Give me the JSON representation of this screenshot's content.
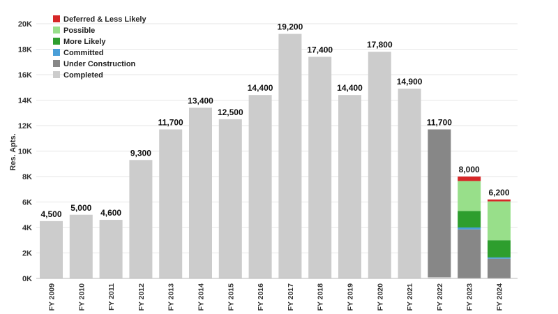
{
  "chart_data": {
    "type": "bar",
    "stacked": true,
    "ylabel": "Res. Apts.",
    "xlabel": "",
    "ylim": [
      0,
      20000
    ],
    "yticks": [
      0,
      2000,
      4000,
      6000,
      8000,
      10000,
      12000,
      14000,
      16000,
      18000,
      20000
    ],
    "ytick_labels": [
      "0K",
      "2K",
      "4K",
      "6K",
      "8K",
      "10K",
      "12K",
      "14K",
      "16K",
      "18K",
      "20K"
    ],
    "grid": true,
    "legend_position": "top-left",
    "categories": [
      "FY 2009",
      "FY 2010",
      "FY 2011",
      "FY 2012",
      "FY 2013",
      "FY 2014",
      "FY 2015",
      "FY 2016",
      "FY 2017",
      "FY 2018",
      "FY 2019",
      "FY 2020",
      "FY 2021",
      "FY 2022",
      "FY 2023",
      "FY 2024"
    ],
    "series": [
      {
        "name": "Completed",
        "color": "#cccccc",
        "values": [
          4500,
          5000,
          4600,
          9300,
          11700,
          13400,
          12500,
          14400,
          19200,
          17400,
          14400,
          17800,
          14900,
          100,
          0,
          0
        ]
      },
      {
        "name": "Under Construction",
        "color": "#878787",
        "values": [
          0,
          0,
          0,
          0,
          0,
          0,
          0,
          0,
          0,
          0,
          0,
          0,
          0,
          11600,
          3850,
          1550
        ]
      },
      {
        "name": "Committed",
        "color": "#4a9fd8",
        "values": [
          0,
          0,
          0,
          0,
          0,
          0,
          0,
          0,
          0,
          0,
          0,
          0,
          0,
          0,
          150,
          100
        ]
      },
      {
        "name": "More Likely",
        "color": "#2e9e2e",
        "values": [
          0,
          0,
          0,
          0,
          0,
          0,
          0,
          0,
          0,
          0,
          0,
          0,
          0,
          0,
          1300,
          1350
        ]
      },
      {
        "name": "Possible",
        "color": "#98df8a",
        "values": [
          0,
          0,
          0,
          0,
          0,
          0,
          0,
          0,
          0,
          0,
          0,
          0,
          0,
          0,
          2350,
          3050
        ]
      },
      {
        "name": "Deferred & Less Likely",
        "color": "#d62728",
        "values": [
          0,
          0,
          0,
          0,
          0,
          0,
          0,
          0,
          0,
          0,
          0,
          0,
          0,
          0,
          350,
          150
        ]
      }
    ],
    "totals": [
      4500,
      5000,
      4600,
      9300,
      11700,
      13400,
      12500,
      14400,
      19200,
      17400,
      14400,
      17800,
      14900,
      11700,
      8000,
      6200
    ],
    "total_labels": [
      "4,500",
      "5,000",
      "4,600",
      "9,300",
      "11,700",
      "13,400",
      "12,500",
      "14,400",
      "19,200",
      "17,400",
      "14,400",
      "17,800",
      "14,900",
      "11,700",
      "8,000",
      "6,200"
    ],
    "legend_order": [
      "Deferred & Less Likely",
      "Possible",
      "More Likely",
      "Committed",
      "Under Construction",
      "Completed"
    ]
  }
}
